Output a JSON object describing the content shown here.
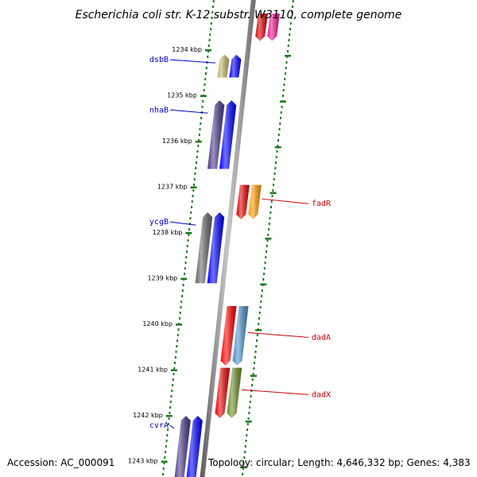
{
  "title": "Escherichia coli str. K-12 substr. W3110, complete genome",
  "footer": {
    "accession": "Accession: AC_000091",
    "topology": "Topology: circular; Length: 4,646,332 bp; Genes: 4,383"
  },
  "colors": {
    "axis_dots": "#1a7a1a",
    "left_label": "#0000cc",
    "right_label": "#cc0000",
    "backbone": "#8a8a8a"
  },
  "scale": {
    "unit": "kbp",
    "ticks": [
      {
        "kbp": 1234,
        "label": "1234 kbp"
      },
      {
        "kbp": 1235,
        "label": "1235 kbp"
      },
      {
        "kbp": 1236,
        "label": "1236 kbp"
      },
      {
        "kbp": 1237,
        "label": "1237 kbp"
      },
      {
        "kbp": 1238,
        "label": "1238 kbp"
      },
      {
        "kbp": 1239,
        "label": "1239 kbp"
      },
      {
        "kbp": 1240,
        "label": "1240 kbp"
      },
      {
        "kbp": 1241,
        "label": "1241 kbp"
      },
      {
        "kbp": 1242,
        "label": "1242 kbp"
      },
      {
        "kbp": 1243,
        "label": "1243 kbp"
      }
    ]
  },
  "genes": [
    {
      "start": 1233.2,
      "end": 1233.8,
      "track": 1,
      "color": "#dd0000"
    },
    {
      "start": 1233.2,
      "end": 1233.8,
      "track": 2,
      "color": "#ee1a8c"
    },
    {
      "label": "dsbB",
      "side": "left",
      "start": 1234.1,
      "end": 1234.6,
      "track": -2,
      "color": "#c4b46a"
    },
    {
      "start": 1234.1,
      "end": 1234.6,
      "track": -1,
      "color": "#0000ff"
    },
    {
      "label": "nhaB",
      "side": "left",
      "start": 1235.1,
      "end": 1236.6,
      "track": -2,
      "color": "#4a3a8a"
    },
    {
      "start": 1235.1,
      "end": 1236.6,
      "track": -1,
      "color": "#0000ff"
    },
    {
      "label": "fadR",
      "side": "right",
      "start": 1236.95,
      "end": 1237.7,
      "track": 1,
      "color": "#e30000"
    },
    {
      "start": 1236.95,
      "end": 1237.7,
      "track": 2,
      "color": "#ff9900"
    },
    {
      "label": "ycgB",
      "side": "left",
      "start": 1237.55,
      "end": 1239.1,
      "track": -2,
      "color": "#666666"
    },
    {
      "start": 1237.55,
      "end": 1239.1,
      "track": -1,
      "color": "#0000ff"
    },
    {
      "label": "dadA",
      "side": "right",
      "start": 1239.6,
      "end": 1240.9,
      "track": 1,
      "color": "#ff0000"
    },
    {
      "start": 1239.6,
      "end": 1240.9,
      "track": 2,
      "color": "#4a90c8"
    },
    {
      "label": "dadX",
      "side": "right",
      "start": 1240.95,
      "end": 1242.05,
      "track": 1,
      "color": "#ee0000"
    },
    {
      "start": 1240.95,
      "end": 1242.05,
      "track": 2,
      "color": "#6e8c28"
    },
    {
      "label": "cvrA",
      "side": "left",
      "start": 1242.0,
      "end": 1243.5,
      "track": -2,
      "color": "#4a3a8a"
    },
    {
      "start": 1242.0,
      "end": 1243.5,
      "track": -1,
      "color": "#0000ff"
    }
  ]
}
